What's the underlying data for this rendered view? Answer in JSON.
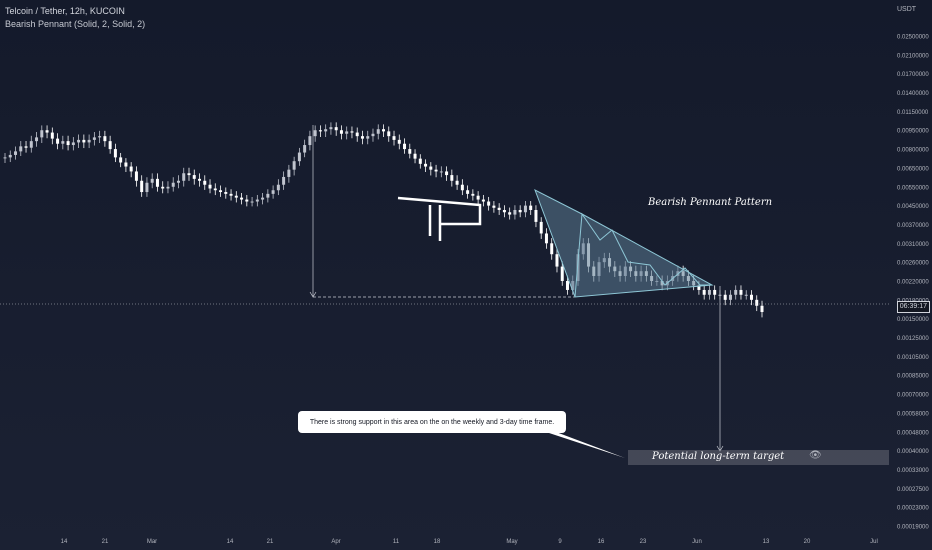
{
  "header": {
    "title": "Telcoin / Tether, 12h, KUCOIN",
    "indicator": "Bearish Pennant (Solid, 2, Solid, 2)"
  },
  "chart_data": {
    "type": "candlestick",
    "price_axis_unit": "USDT",
    "y_ticks": [
      "0.02500000",
      "0.02100000",
      "0.01700000",
      "0.01400000",
      "0.01150000",
      "0.00950000",
      "0.00800000",
      "0.00650000",
      "0.00550000",
      "0.00450000",
      "0.00370000",
      "0.00310000",
      "0.00260000",
      "0.00220000",
      "0.00180000",
      "0.00150000",
      "0.00125000",
      "0.00105000",
      "0.00085000",
      "0.00070000",
      "0.00058000",
      "0.00048000",
      "0.00040000",
      "0.00033000",
      "0.00027500",
      "0.00023000",
      "0.00019000"
    ],
    "x_ticks": [
      "14",
      "21",
      "Mar",
      "14",
      "21",
      "Apr",
      "11",
      "18",
      "May",
      "9",
      "16",
      "23",
      "Jun",
      "13",
      "20",
      "Jul"
    ],
    "current_price_label": "06:39:17",
    "log_scale": true,
    "series": [
      {
        "type": "candles",
        "values": [
          0.0073,
          0.0075,
          0.0078,
          0.0082,
          0.0081,
          0.0086,
          0.0089,
          0.0095,
          0.0093,
          0.0088,
          0.0084,
          0.0086,
          0.0083,
          0.0085,
          0.0087,
          0.0085,
          0.0087,
          0.0089,
          0.009,
          0.0086,
          0.008,
          0.0073,
          0.0069,
          0.0066,
          0.0063,
          0.0058,
          0.0052,
          0.0057,
          0.0059,
          0.0055,
          0.0054,
          0.0055,
          0.0057,
          0.0058,
          0.0062,
          0.0061,
          0.0059,
          0.0058,
          0.0056,
          0.0054,
          0.0053,
          0.0052,
          0.0051,
          0.005,
          0.0049,
          0.0048,
          0.0047,
          0.0047,
          0.0048,
          0.0049,
          0.0051,
          0.0053,
          0.0056,
          0.006,
          0.0064,
          0.007,
          0.0077,
          0.0083,
          0.009,
          0.0095,
          0.0094,
          0.0096,
          0.0098,
          0.0095,
          0.0092,
          0.0094,
          0.0093,
          0.009,
          0.0088,
          0.009,
          0.0092,
          0.0096,
          0.0094,
          0.009,
          0.0087,
          0.0084,
          0.008,
          0.0076,
          0.0072,
          0.0068,
          0.0066,
          0.0064,
          0.0063,
          0.0063,
          0.0061,
          0.0058,
          0.0056,
          0.0053,
          0.0051,
          0.005,
          0.0048,
          0.0047,
          0.0045,
          0.0044,
          0.0043,
          0.0042,
          0.0041,
          0.0043,
          0.0042,
          0.0045,
          0.0043,
          0.0038,
          0.0034,
          0.0031,
          0.0028,
          0.0025,
          0.0022,
          0.002,
          0.0022,
          0.0028,
          0.0031,
          0.0025,
          0.0023,
          0.0026,
          0.0027,
          0.0025,
          0.0024,
          0.0023,
          0.0025,
          0.0024,
          0.0023,
          0.0024,
          0.0023,
          0.0022,
          0.0022,
          0.0021,
          0.0022,
          0.0023,
          0.0024,
          0.0023,
          0.0022,
          0.0021,
          0.002,
          0.0019,
          0.002,
          0.0019,
          0.0019,
          0.0018,
          0.0019,
          0.002,
          0.0019,
          0.0019,
          0.0018,
          0.0017,
          0.0016
        ]
      }
    ],
    "annotations": {
      "pattern_label": "Bearish Pennant Pattern",
      "target_label": "Potential long-term target",
      "callout_text": "There is strong support in this area on the on the weekly and 3-day time frame."
    }
  },
  "colors": {
    "up": "#c0c4ce",
    "down": "#ffffff",
    "pattern_stroke": "#8ec7d6",
    "pattern_fill": "#5b7a92",
    "grid_text": "#b2b5be"
  },
  "icons": {
    "target_eye": "eye-icon"
  }
}
